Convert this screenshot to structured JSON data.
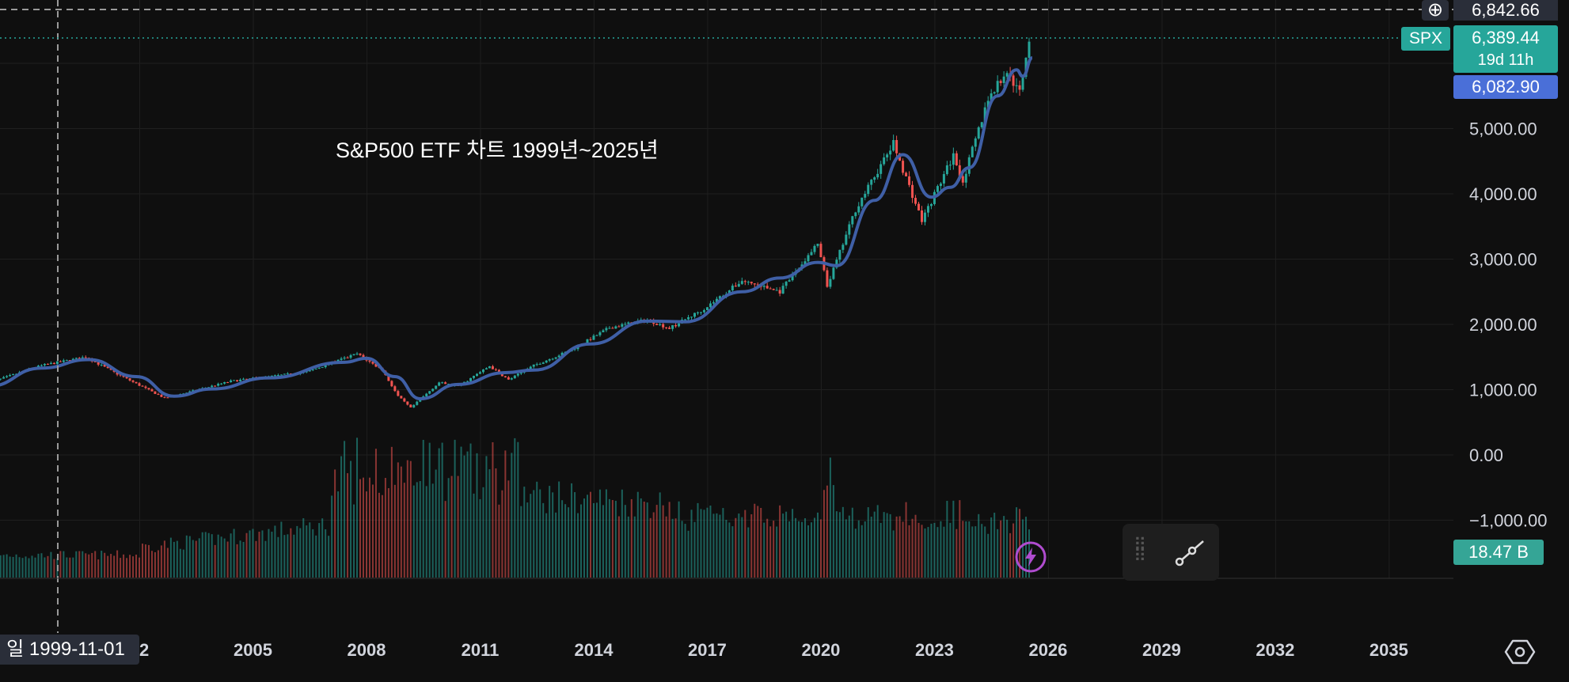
{
  "chart_data": {
    "type": "candlestick",
    "title": "S&P500 ETF 차트 1999년~2025년",
    "symbol": "SPX",
    "interval": "monthly",
    "x_ticks": [
      "2002",
      "2005",
      "2008",
      "2011",
      "2014",
      "2017",
      "2020",
      "2023",
      "2026",
      "2029",
      "2032",
      "2035"
    ],
    "x_tick_labels_shown": [
      "02",
      "2005",
      "2008",
      "2011",
      "2014",
      "2017",
      "2020",
      "2023",
      "2026",
      "2029",
      "2032",
      "2035"
    ],
    "y_ticks": [
      "5,000.00",
      "4,000.00",
      "3,000.00",
      "2,000.00",
      "1,000.00",
      "0.00",
      "−1,000.00"
    ],
    "ylim": [
      -1000,
      6842.66
    ],
    "grid": true,
    "price_series": {
      "name": "SPX",
      "points": [
        {
          "date": "1998-01",
          "close": 1100
        },
        {
          "date": "1999-06",
          "close": 1370
        },
        {
          "date": "2000-08",
          "close": 1500
        },
        {
          "date": "2001-06",
          "close": 1240
        },
        {
          "date": "2002-09",
          "close": 870
        },
        {
          "date": "2003-06",
          "close": 980
        },
        {
          "date": "2004-06",
          "close": 1130
        },
        {
          "date": "2005-06",
          "close": 1200
        },
        {
          "date": "2006-06",
          "close": 1270
        },
        {
          "date": "2007-10",
          "close": 1550
        },
        {
          "date": "2008-06",
          "close": 1300
        },
        {
          "date": "2008-11",
          "close": 900
        },
        {
          "date": "2009-03",
          "close": 720
        },
        {
          "date": "2009-12",
          "close": 1110
        },
        {
          "date": "2010-06",
          "close": 1050
        },
        {
          "date": "2011-04",
          "close": 1360
        },
        {
          "date": "2011-10",
          "close": 1150
        },
        {
          "date": "2012-06",
          "close": 1370
        },
        {
          "date": "2013-06",
          "close": 1610
        },
        {
          "date": "2014-06",
          "close": 1950
        },
        {
          "date": "2015-06",
          "close": 2070
        },
        {
          "date": "2016-01",
          "close": 1940
        },
        {
          "date": "2016-12",
          "close": 2240
        },
        {
          "date": "2017-12",
          "close": 2670
        },
        {
          "date": "2018-12",
          "close": 2500
        },
        {
          "date": "2019-12",
          "close": 3230
        },
        {
          "date": "2020-03",
          "close": 2580
        },
        {
          "date": "2020-12",
          "close": 3760
        },
        {
          "date": "2021-12",
          "close": 4770
        },
        {
          "date": "2022-09",
          "close": 3590
        },
        {
          "date": "2023-07",
          "close": 4590
        },
        {
          "date": "2023-10",
          "close": 4190
        },
        {
          "date": "2024-06",
          "close": 5460
        },
        {
          "date": "2024-12",
          "close": 5880
        },
        {
          "date": "2025-03",
          "close": 5610
        },
        {
          "date": "2025-04",
          "close": 5570
        },
        {
          "date": "2025-07",
          "close": 6389.44
        }
      ]
    },
    "moving_average": {
      "points": [
        {
          "date": "1998-01",
          "value": 1050
        },
        {
          "date": "1999-06",
          "value": 1330
        },
        {
          "date": "2000-09",
          "value": 1460
        },
        {
          "date": "2001-12",
          "value": 1200
        },
        {
          "date": "2002-12",
          "value": 900
        },
        {
          "date": "2003-12",
          "value": 1010
        },
        {
          "date": "2005-06",
          "value": 1180
        },
        {
          "date": "2007-06",
          "value": 1420
        },
        {
          "date": "2008-01",
          "value": 1480
        },
        {
          "date": "2008-10",
          "value": 1200
        },
        {
          "date": "2009-06",
          "value": 860
        },
        {
          "date": "2010-06",
          "value": 1080
        },
        {
          "date": "2011-09",
          "value": 1260
        },
        {
          "date": "2012-06",
          "value": 1300
        },
        {
          "date": "2013-12",
          "value": 1700
        },
        {
          "date": "2015-06",
          "value": 2050
        },
        {
          "date": "2016-06",
          "value": 2040
        },
        {
          "date": "2017-12",
          "value": 2500
        },
        {
          "date": "2018-12",
          "value": 2710
        },
        {
          "date": "2019-12",
          "value": 2950
        },
        {
          "date": "2020-06",
          "value": 2900
        },
        {
          "date": "2021-06",
          "value": 3900
        },
        {
          "date": "2022-03",
          "value": 4600
        },
        {
          "date": "2022-12",
          "value": 3950
        },
        {
          "date": "2023-06",
          "value": 4100
        },
        {
          "date": "2023-12",
          "value": 4400
        },
        {
          "date": "2024-09",
          "value": 5500
        },
        {
          "date": "2025-03",
          "value": 5900
        },
        {
          "date": "2025-05",
          "value": 5800
        },
        {
          "date": "2025-08",
          "value": 6082.9
        }
      ]
    },
    "volume": {
      "unit": "B",
      "latest": "18.47 B"
    }
  },
  "labels": {
    "top_price": "6,842.66",
    "symbol_tag": "SPX",
    "last_price": "6,389.44",
    "countdown": "19d 11h",
    "ma_value": "6,082.90",
    "volume_value": "18.47 B",
    "crosshair_date": "일 1999-11-01"
  },
  "icons": {
    "add": "plus-circle-icon",
    "flash": "lightning-icon",
    "grip": "drag-grip-icon",
    "line_tool": "trend-line-icon",
    "settings": "settings-hexagon-icon"
  },
  "colors": {
    "background": "#0f0f0f",
    "up": "#26a69a",
    "down": "#ef5350",
    "ma": "#3f5fa6",
    "grid": "#1f1f1f"
  }
}
